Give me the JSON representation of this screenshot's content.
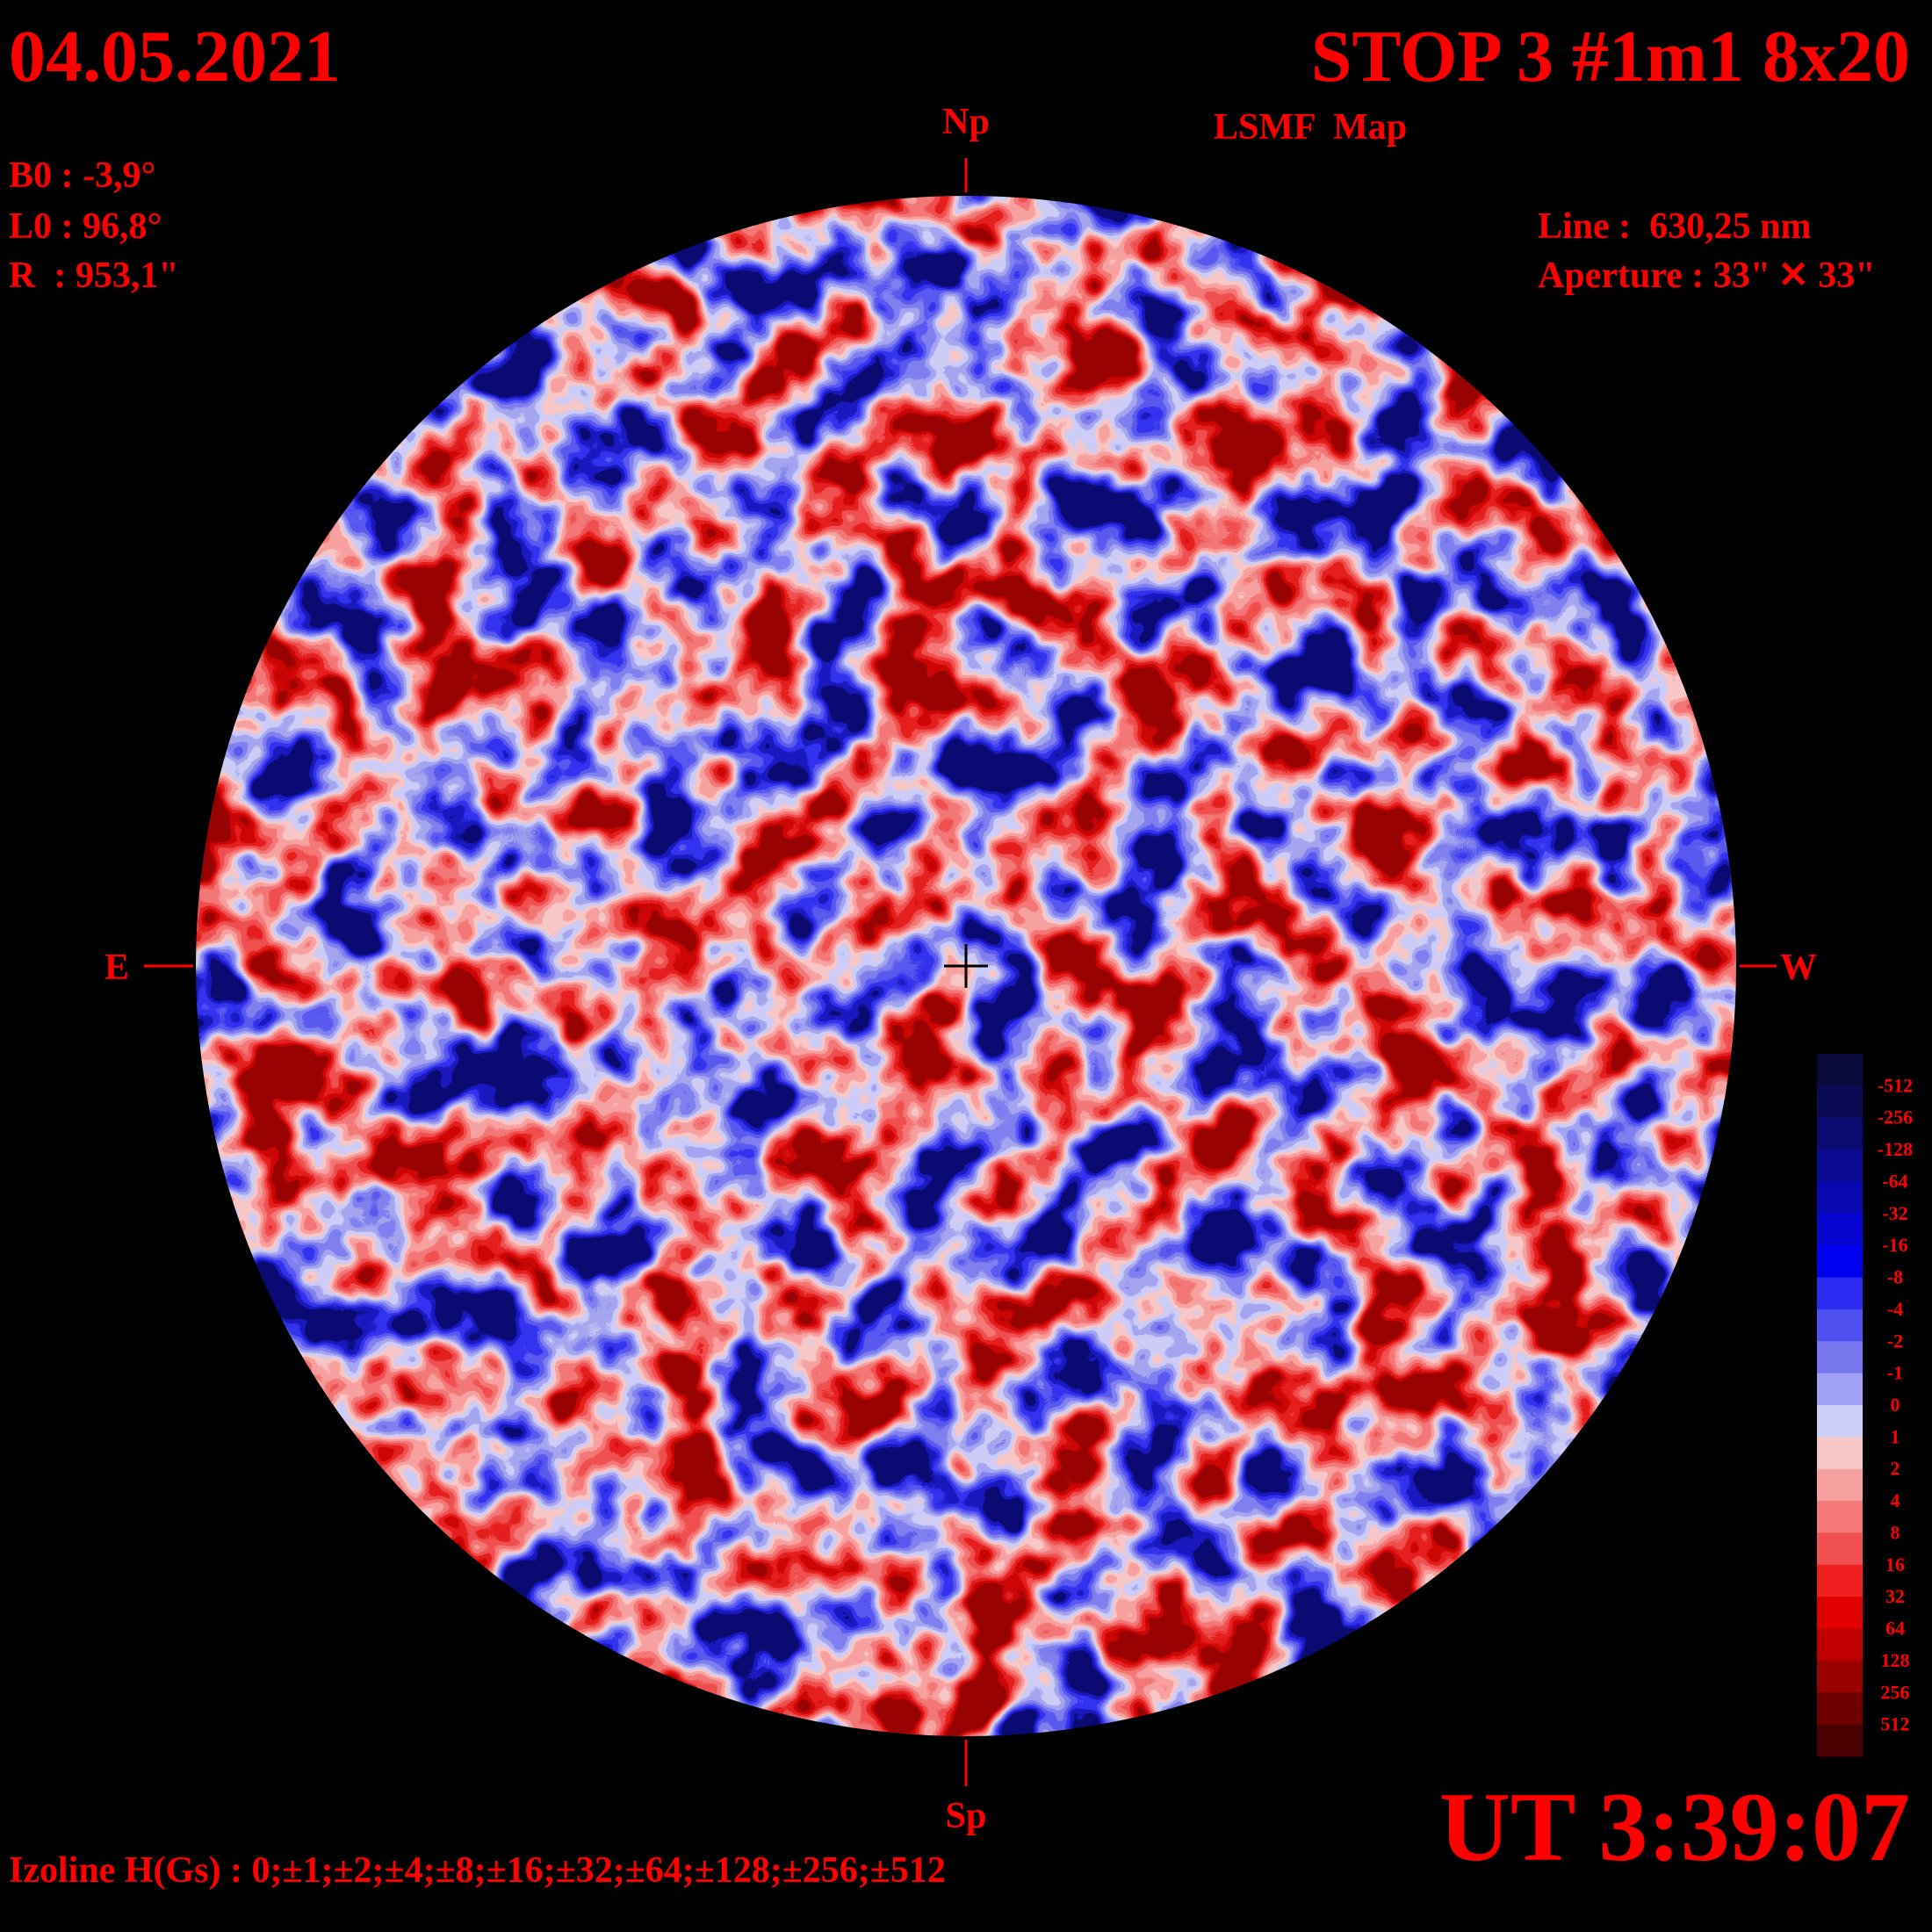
{
  "header": {
    "date": "04.05.2021",
    "title": "STOP 3 #1m1 8x20",
    "subtitle": "LSMF  Map",
    "time": "UT 3:39:07"
  },
  "parameters": {
    "b0": "B0 : -3,9°",
    "l0": "L0 : 96,8°",
    "r": "R  : 953,1\"",
    "line": "Line :  630,25 nm",
    "aperture": "Aperture : 33\" ✕ 33\""
  },
  "directions": {
    "north": "Np",
    "south": "Sp",
    "east": "E",
    "west": "W"
  },
  "footer": "Izoline H(Gs) : 0;±1;±2;±4;±8;±16;±32;±64;±128;±256;±512",
  "colorbar": {
    "levels": [
      -512,
      -256,
      -128,
      -64,
      -32,
      -16,
      -8,
      -4,
      -2,
      -1,
      0,
      1,
      2,
      4,
      8,
      16,
      32,
      64,
      128,
      256,
      512
    ],
    "colors": [
      "#0a0a3a",
      "#0b0b55",
      "#0a0a70",
      "#0a0a90",
      "#0808b0",
      "#0606d0",
      "#0000f0",
      "#2a2af0",
      "#5050f0",
      "#7878ee",
      "#a0a0f4",
      "#ccd0f8",
      "#f8c8c8",
      "#f6a0a0",
      "#f47878",
      "#f05050",
      "#f02020",
      "#e00000",
      "#c00000",
      "#9a0000",
      "#700000",
      "#4a0000"
    ]
  }
}
